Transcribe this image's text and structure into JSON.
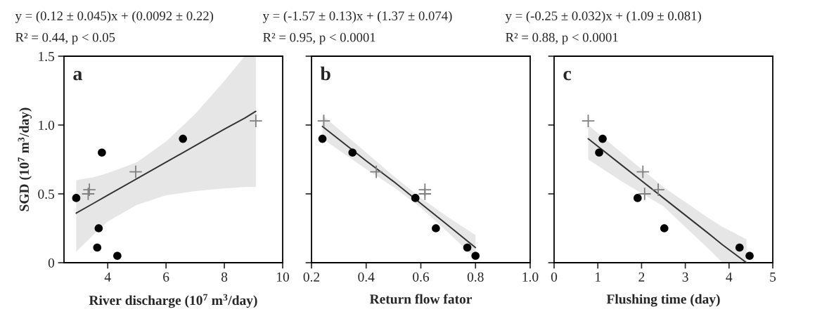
{
  "chart_data": [
    {
      "type": "scatter",
      "title": "y = (0.12 ± 0.045)x + (0.0092 ± 0.22)",
      "subtitle": "R² = 0.44, p < 0.05",
      "xlabel": "River discharge (10$^{7}$ m$^{3}$/day)",
      "ylabel": "SGD (10$^{7}$ m$^{3}$/day)",
      "annotations": [
        "a"
      ],
      "xlim": [
        2.5,
        10
      ],
      "xticks": [
        4,
        6,
        8,
        10
      ],
      "ylim": [
        0,
        1.5
      ],
      "yticks": [
        0,
        {
          "value": 0.5,
          "label": "0.5"
        },
        {
          "value": 1,
          "label": "1.0"
        },
        {
          "value": 1.5,
          "label": "1.5"
        }
      ],
      "series": [
        {
          "type": "line",
          "color": "#333333",
          "marker": "none",
          "line_style": "solid",
          "x": [
            2.92,
            3.5,
            4,
            5,
            6,
            7,
            8,
            8.7,
            9.08
          ],
          "values": [
            0.36,
            0.43,
            0.49,
            0.61,
            0.73,
            0.85,
            0.97,
            1.05,
            1.1
          ],
          "lower": [
            0.08,
            0.2,
            0.3,
            0.42,
            0.49,
            0.52,
            0.54,
            0.55,
            0.55
          ],
          "upper": [
            0.6,
            0.62,
            0.65,
            0.73,
            0.88,
            1.08,
            1.32,
            1.5,
            1.5
          ]
        },
        {
          "type": "scatter",
          "color": "#000000",
          "marker": "circle",
          "x": [
            2.92,
            3.8,
            3.69,
            3.64,
            4.33,
            6.58
          ],
          "values": [
            0.47,
            0.8,
            0.25,
            0.11,
            0.05,
            0.9
          ]
        },
        {
          "type": "scatter",
          "color": "#808080",
          "marker": "cross",
          "x": [
            3.33,
            3.37,
            4.96,
            9.08
          ],
          "values": [
            0.5,
            0.53,
            0.66,
            1.03
          ]
        }
      ]
    },
    {
      "type": "scatter",
      "title": "y = (-1.57 ± 0.13)x + (1.37 ± 0.074)",
      "subtitle": "R² = 0.95, p < 0.0001",
      "xlabel": "Return flow fator",
      "annotations": [
        "b"
      ],
      "tick_labels": "x",
      "xlim": [
        0.2,
        1.0
      ],
      "xticks": [
        {
          "value": 0.2,
          "label": "0.2"
        },
        {
          "value": 0.4,
          "label": "0.4"
        },
        {
          "value": 0.6,
          "label": "0.6"
        },
        {
          "value": 0.8,
          "label": "0.8"
        },
        {
          "value": 1.0,
          "label": "1.0"
        }
      ],
      "ylim": [
        0,
        1.5
      ],
      "yticks": [
        {
          "value": 0,
          "label": null
        },
        {
          "value": 0.5,
          "label": null
        },
        {
          "value": 1,
          "label": null
        },
        {
          "value": 1.5,
          "label": null
        }
      ],
      "series": [
        {
          "type": "line",
          "color": "#333333",
          "marker": "none",
          "line_style": "solid",
          "x": [
            0.24,
            0.4,
            0.5,
            0.6,
            0.7,
            0.8
          ],
          "values": [
            0.99,
            0.74,
            0.59,
            0.43,
            0.27,
            0.11
          ],
          "lower": [
            0.9,
            0.68,
            0.55,
            0.4,
            0.22,
            0.03
          ],
          "upper": [
            1.07,
            0.8,
            0.63,
            0.47,
            0.33,
            0.2
          ]
        },
        {
          "type": "scatter",
          "color": "#000000",
          "marker": "circle",
          "x": [
            0.24,
            0.35,
            0.58,
            0.655,
            0.77,
            0.8
          ],
          "values": [
            0.9,
            0.8,
            0.47,
            0.25,
            0.11,
            0.05
          ]
        },
        {
          "type": "scatter",
          "color": "#808080",
          "marker": "cross",
          "x": [
            0.245,
            0.437,
            0.615,
            0.615
          ],
          "values": [
            1.03,
            0.66,
            0.53,
            0.5
          ]
        }
      ]
    },
    {
      "type": "scatter",
      "title": "y = (-0.25 ± 0.032)x + (1.09 ± 0.081)",
      "subtitle": "R² = 0.88, p < 0.0001",
      "xlabel": "Flushing time (day)",
      "annotations": [
        "c"
      ],
      "tick_labels": "x",
      "xlim": [
        0,
        5
      ],
      "xticks": [
        0,
        1,
        2,
        3,
        4,
        5
      ],
      "ylim": [
        0,
        1.5
      ],
      "yticks": [
        {
          "value": 0,
          "label": null
        },
        {
          "value": 0.5,
          "label": null
        },
        {
          "value": 1,
          "label": null
        },
        {
          "value": 1.5,
          "label": null
        }
      ],
      "series": [
        {
          "type": "line",
          "color": "#333333",
          "marker": "none",
          "line_style": "solid",
          "x": [
            0.78,
            1.5,
            2.5,
            3.5,
            3.85,
            4.4
          ],
          "values": [
            0.9,
            0.72,
            0.47,
            0.22,
            0.13,
            0
          ],
          "lower": [
            0.75,
            0.6,
            0.41,
            0.11,
            0,
            0
          ],
          "upper": [
            1.0,
            0.81,
            0.55,
            0.33,
            0.26,
            0.17
          ]
        },
        {
          "type": "scatter",
          "color": "#000000",
          "marker": "circle",
          "x": [
            1.11,
            1.03,
            1.91,
            2.52,
            4.24,
            4.47
          ],
          "values": [
            0.9,
            0.8,
            0.47,
            0.25,
            0.11,
            0.05
          ]
        },
        {
          "type": "scatter",
          "color": "#808080",
          "marker": "cross",
          "x": [
            0.78,
            2.03,
            2.07,
            2.38
          ],
          "values": [
            1.03,
            0.66,
            0.5,
            0.53
          ]
        }
      ]
    }
  ]
}
